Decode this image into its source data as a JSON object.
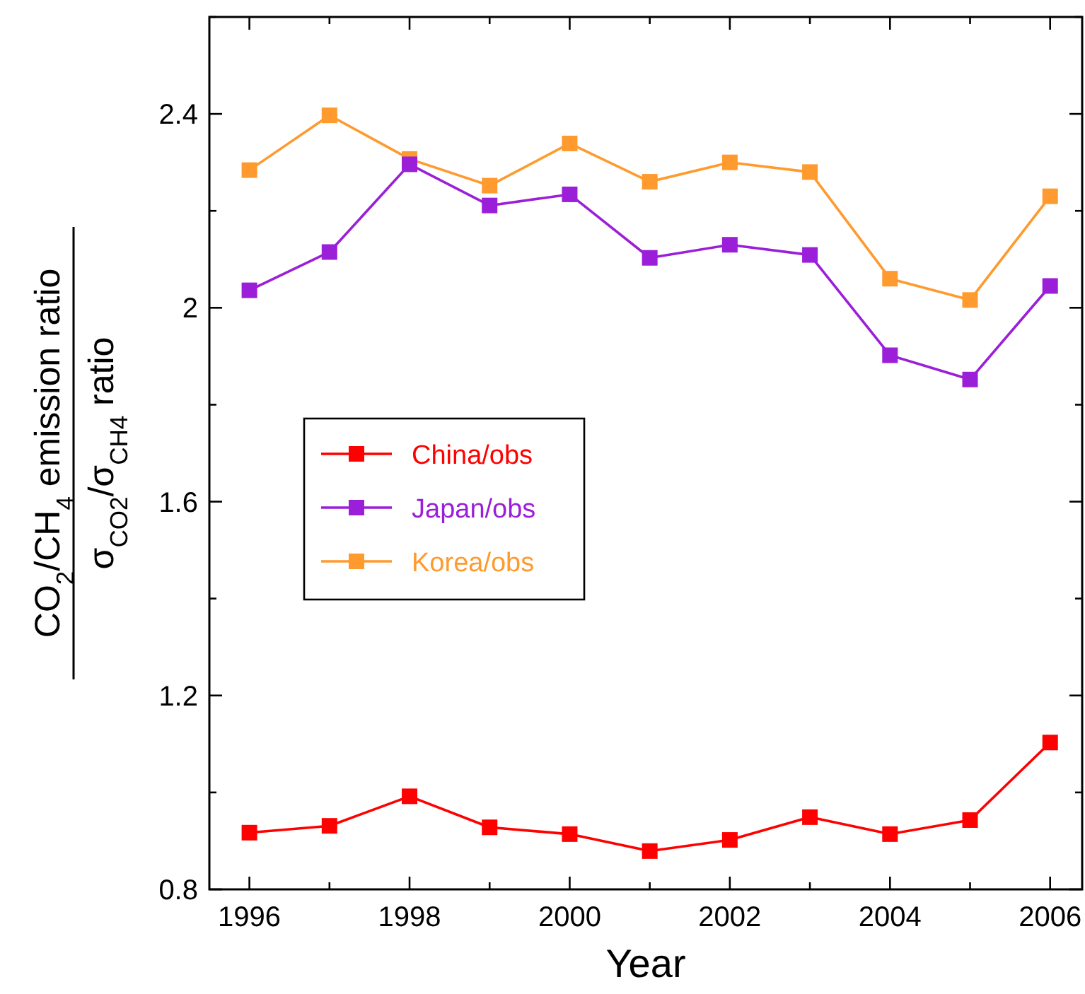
{
  "chart_data": {
    "type": "line",
    "xlabel": "Year",
    "ylabel": "CO$_{2}$/CH$_{4}$ emission ratio\nσ$_{CO2}$/σ$_{CH4}$ ratio",
    "x": [
      1996,
      1997,
      1998,
      1999,
      2000,
      2001,
      2002,
      2003,
      2004,
      2005,
      2006
    ],
    "series": [
      {
        "name": "China/obs",
        "color": "#ff0000",
        "values": [
          0.917,
          0.931,
          0.992,
          0.928,
          0.914,
          0.879,
          0.902,
          0.949,
          0.914,
          0.943,
          1.103
        ]
      },
      {
        "name": "Japan/obs",
        "color": "#9b1fd8",
        "values": [
          2.036,
          2.115,
          2.296,
          2.211,
          2.234,
          2.103,
          2.13,
          2.109,
          1.902,
          1.852,
          2.045
        ]
      },
      {
        "name": "Korea/obs",
        "color": "#ff9a2e",
        "values": [
          2.284,
          2.397,
          2.307,
          2.252,
          2.339,
          2.26,
          2.3,
          2.28,
          2.06,
          2.016,
          2.23
        ]
      }
    ],
    "xlim": [
      1995.5,
      2006.4
    ],
    "ylim": [
      0.8,
      2.6
    ],
    "xticks": [
      1996,
      {
        "value": 1997,
        "label": null
      },
      1998,
      {
        "value": 1999,
        "label": null
      },
      2000,
      {
        "value": 2001,
        "label": null
      },
      2002,
      {
        "value": 2003,
        "label": null
      },
      2004,
      {
        "value": 2005,
        "label": null
      },
      2006
    ],
    "yticks": [
      0.8,
      {
        "value": 1.0,
        "label": null
      },
      1.2,
      {
        "value": 1.4,
        "label": null
      },
      1.6,
      {
        "value": 1.8,
        "label": null
      },
      2,
      {
        "value": 2.2,
        "label": null
      },
      2.4,
      {
        "value": 2.6,
        "label": null
      }
    ],
    "marker": "square",
    "line_style": "solid",
    "legend": "left",
    "grid": false
  }
}
